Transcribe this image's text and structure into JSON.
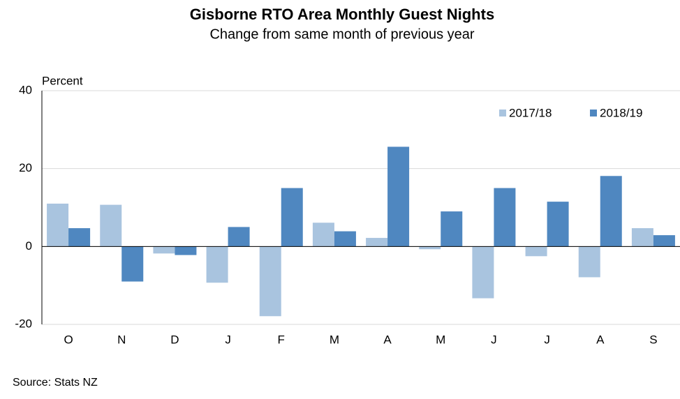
{
  "chart_data": {
    "type": "bar",
    "title": "Gisborne RTO Area Monthly Guest Nights",
    "subtitle": "Change from same month of previous year",
    "y_label": "Percent",
    "source": "Source: Stats NZ",
    "categories": [
      "O",
      "N",
      "D",
      "J",
      "F",
      "M",
      "A",
      "M",
      "J",
      "J",
      "A",
      "S"
    ],
    "series": [
      {
        "name": "2017/18",
        "color": "#a9c4df",
        "values": [
          11.0,
          10.7,
          -1.8,
          -9.3,
          -17.9,
          6.1,
          2.2,
          -0.7,
          -13.3,
          -2.5,
          -7.9,
          4.7
        ]
      },
      {
        "name": "2018/19",
        "color": "#4f87c0",
        "values": [
          4.7,
          -9.0,
          -2.2,
          5.0,
          15.0,
          3.9,
          25.6,
          9.0,
          15.0,
          11.5,
          18.1,
          2.9
        ]
      }
    ],
    "ylim": [
      -20,
      40
    ],
    "yticks": [
      -20,
      0,
      20,
      40
    ],
    "grid": true,
    "legend": "top-right"
  }
}
